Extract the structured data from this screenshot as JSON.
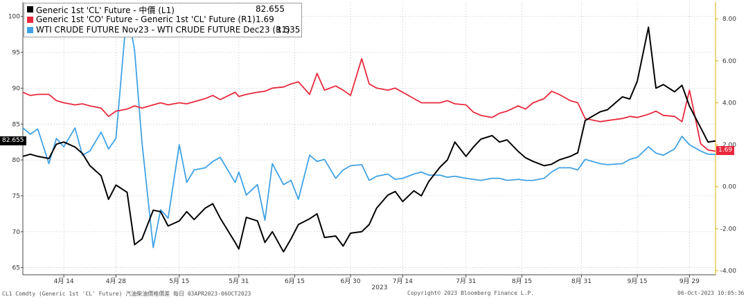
{
  "chart_data": {
    "type": "line",
    "x_start": "2023-04-03",
    "x_end": "2023-10-06",
    "x_tick_labels": [
      "4月 14",
      "4月 28",
      "5月 15",
      "5月 31",
      "6月 15",
      "6月 30",
      "7月 14",
      "7月 31",
      "8月 15",
      "8月 31",
      "9月 15",
      "9月 29"
    ],
    "x_tick_dates": [
      "2023-04-14",
      "2023-04-28",
      "2023-05-15",
      "2023-05-31",
      "2023-06-15",
      "2023-06-30",
      "2023-07-14",
      "2023-07-31",
      "2023-08-15",
      "2023-08-31",
      "2023-09-15",
      "2023-09-29"
    ],
    "x_year_label": "2023",
    "left_axis": {
      "ylim": [
        64,
        102
      ],
      "ticks": [
        65,
        70,
        75,
        80,
        85,
        90,
        95,
        100
      ]
    },
    "right_axis": {
      "ylim": [
        -4.2,
        8.8
      ],
      "ticks": [
        -4.0,
        -2.0,
        0.0,
        2.0,
        4.0,
        6.0,
        8.0
      ],
      "tick_labels": [
        "-4.00",
        "-2.00",
        "0.00",
        "2.00",
        "4.00",
        "6.00",
        "8.00"
      ]
    },
    "grid": true,
    "legend_position": "top-left",
    "series": [
      {
        "name": "Generic 1st 'CL' Future - 中價 (L1)",
        "last": "82.655",
        "axis": "left",
        "color": "#000000",
        "x": [
          "2023-04-03",
          "2023-04-05",
          "2023-04-07",
          "2023-04-10",
          "2023-04-12",
          "2023-04-14",
          "2023-04-17",
          "2023-04-19",
          "2023-04-21",
          "2023-04-24",
          "2023-04-26",
          "2023-04-28",
          "2023-05-01",
          "2023-05-03",
          "2023-05-05",
          "2023-05-08",
          "2023-05-10",
          "2023-05-12",
          "2023-05-15",
          "2023-05-17",
          "2023-05-19",
          "2023-05-22",
          "2023-05-24",
          "2023-05-26",
          "2023-05-30",
          "2023-05-31",
          "2023-06-02",
          "2023-06-05",
          "2023-06-07",
          "2023-06-09",
          "2023-06-12",
          "2023-06-14",
          "2023-06-16",
          "2023-06-19",
          "2023-06-21",
          "2023-06-23",
          "2023-06-26",
          "2023-06-28",
          "2023-06-30",
          "2023-07-03",
          "2023-07-05",
          "2023-07-07",
          "2023-07-10",
          "2023-07-12",
          "2023-07-14",
          "2023-07-17",
          "2023-07-19",
          "2023-07-21",
          "2023-07-24",
          "2023-07-26",
          "2023-07-28",
          "2023-07-31",
          "2023-08-02",
          "2023-08-04",
          "2023-08-07",
          "2023-08-09",
          "2023-08-11",
          "2023-08-14",
          "2023-08-16",
          "2023-08-18",
          "2023-08-21",
          "2023-08-23",
          "2023-08-25",
          "2023-08-28",
          "2023-08-30",
          "2023-09-01",
          "2023-09-05",
          "2023-09-07",
          "2023-09-11",
          "2023-09-13",
          "2023-09-15",
          "2023-09-18",
          "2023-09-20",
          "2023-09-22",
          "2023-09-25",
          "2023-09-27",
          "2023-09-29",
          "2023-10-02",
          "2023-10-04",
          "2023-10-06"
        ],
        "values": [
          80.5,
          80.8,
          80.5,
          80.2,
          82.2,
          82.5,
          81.8,
          80.9,
          79.2,
          77.8,
          74.5,
          76.5,
          75.5,
          68.2,
          69.0,
          73.0,
          72.8,
          70.8,
          71.5,
          72.8,
          71.7,
          73.3,
          73.9,
          71.9,
          68.5,
          67.6,
          72.0,
          71.5,
          68.5,
          70.0,
          67.2,
          69.0,
          71.0,
          71.8,
          72.5,
          69.2,
          69.4,
          68.0,
          69.8,
          70.0,
          71.0,
          73.3,
          75.1,
          75.6,
          74.2,
          75.7,
          75.0,
          77.0,
          79.0,
          80.0,
          82.5,
          80.5,
          81.8,
          82.9,
          83.4,
          82.5,
          82.8,
          81.2,
          80.3,
          79.8,
          79.2,
          79.4,
          80.0,
          80.5,
          81.0,
          85.5,
          86.7,
          87.0,
          88.8,
          88.5,
          91.0,
          98.5,
          90.0,
          90.5,
          89.5,
          90.4,
          87.5,
          84.5,
          82.5,
          82.655
        ]
      },
      {
        "name": "Generic 1st 'CO' Future - Generic 1st 'CL' Future (R1)",
        "last": "1.69",
        "axis": "right",
        "color": "#e8283c",
        "x": [
          "2023-04-03",
          "2023-04-05",
          "2023-04-07",
          "2023-04-10",
          "2023-04-12",
          "2023-04-14",
          "2023-04-17",
          "2023-04-19",
          "2023-04-21",
          "2023-04-24",
          "2023-04-26",
          "2023-04-28",
          "2023-05-01",
          "2023-05-03",
          "2023-05-05",
          "2023-05-08",
          "2023-05-10",
          "2023-05-12",
          "2023-05-15",
          "2023-05-17",
          "2023-05-19",
          "2023-05-22",
          "2023-05-24",
          "2023-05-26",
          "2023-05-30",
          "2023-05-31",
          "2023-06-02",
          "2023-06-05",
          "2023-06-07",
          "2023-06-09",
          "2023-06-12",
          "2023-06-14",
          "2023-06-16",
          "2023-06-19",
          "2023-06-21",
          "2023-06-23",
          "2023-06-26",
          "2023-06-28",
          "2023-06-30",
          "2023-07-03",
          "2023-07-05",
          "2023-07-07",
          "2023-07-10",
          "2023-07-12",
          "2023-07-14",
          "2023-07-17",
          "2023-07-19",
          "2023-07-21",
          "2023-07-24",
          "2023-07-26",
          "2023-07-28",
          "2023-07-31",
          "2023-08-02",
          "2023-08-04",
          "2023-08-07",
          "2023-08-09",
          "2023-08-11",
          "2023-08-14",
          "2023-08-16",
          "2023-08-18",
          "2023-08-21",
          "2023-08-23",
          "2023-08-25",
          "2023-08-28",
          "2023-08-30",
          "2023-09-01",
          "2023-09-05",
          "2023-09-07",
          "2023-09-11",
          "2023-09-13",
          "2023-09-15",
          "2023-09-18",
          "2023-09-20",
          "2023-09-22",
          "2023-09-25",
          "2023-09-27",
          "2023-09-29",
          "2023-10-02",
          "2023-10-04",
          "2023-10-06"
        ],
        "values": [
          4.5,
          4.35,
          4.4,
          4.4,
          4.1,
          4.0,
          3.9,
          3.95,
          3.85,
          3.75,
          3.35,
          3.6,
          3.7,
          3.85,
          3.75,
          3.9,
          4.0,
          3.9,
          4.0,
          3.95,
          4.05,
          4.2,
          4.35,
          4.15,
          4.5,
          4.3,
          4.4,
          4.5,
          4.55,
          4.7,
          4.75,
          4.9,
          5.0,
          4.4,
          5.4,
          4.6,
          4.8,
          4.6,
          4.35,
          6.1,
          4.9,
          4.7,
          4.6,
          4.7,
          4.5,
          4.2,
          4.0,
          4.0,
          4.0,
          4.1,
          3.95,
          3.9,
          3.55,
          3.4,
          3.3,
          3.5,
          3.6,
          3.85,
          3.7,
          4.0,
          4.2,
          4.55,
          4.4,
          4.1,
          4.0,
          3.25,
          3.1,
          3.15,
          3.25,
          3.35,
          3.3,
          3.45,
          3.6,
          3.4,
          3.35,
          3.1,
          4.6,
          2.05,
          1.75,
          1.69
        ]
      },
      {
        "name": "WTI CRUDE FUTURE Nov23 - WTI CRUDE FUTURE Dec23 (R1)",
        "last": "1.535",
        "axis": "right",
        "color": "#3fa2e6",
        "x": [
          "2023-04-03",
          "2023-04-05",
          "2023-04-07",
          "2023-04-10",
          "2023-04-12",
          "2023-04-14",
          "2023-04-17",
          "2023-04-19",
          "2023-04-21",
          "2023-04-24",
          "2023-04-26",
          "2023-04-28",
          "2023-05-01",
          "2023-05-03",
          "2023-05-05",
          "2023-05-08",
          "2023-05-10",
          "2023-05-12",
          "2023-05-15",
          "2023-05-17",
          "2023-05-19",
          "2023-05-22",
          "2023-05-24",
          "2023-05-26",
          "2023-05-30",
          "2023-05-31",
          "2023-06-02",
          "2023-06-05",
          "2023-06-07",
          "2023-06-09",
          "2023-06-12",
          "2023-06-14",
          "2023-06-16",
          "2023-06-19",
          "2023-06-21",
          "2023-06-23",
          "2023-06-26",
          "2023-06-28",
          "2023-06-30",
          "2023-07-03",
          "2023-07-05",
          "2023-07-07",
          "2023-07-10",
          "2023-07-12",
          "2023-07-14",
          "2023-07-17",
          "2023-07-19",
          "2023-07-21",
          "2023-07-24",
          "2023-07-26",
          "2023-07-28",
          "2023-07-31",
          "2023-08-02",
          "2023-08-04",
          "2023-08-07",
          "2023-08-09",
          "2023-08-11",
          "2023-08-14",
          "2023-08-16",
          "2023-08-18",
          "2023-08-21",
          "2023-08-23",
          "2023-08-25",
          "2023-08-28",
          "2023-08-30",
          "2023-09-01",
          "2023-09-05",
          "2023-09-07",
          "2023-09-11",
          "2023-09-13",
          "2023-09-15",
          "2023-09-18",
          "2023-09-20",
          "2023-09-22",
          "2023-09-25",
          "2023-09-27",
          "2023-09-29",
          "2023-10-02",
          "2023-10-04",
          "2023-10-06"
        ],
        "values": [
          2.8,
          2.5,
          2.75,
          1.1,
          2.3,
          1.9,
          2.8,
          1.5,
          1.7,
          2.6,
          1.8,
          2.3,
          8.5,
          6.5,
          2.1,
          -2.9,
          -1.1,
          -1.5,
          2.0,
          0.2,
          0.8,
          0.9,
          1.2,
          1.4,
          0.2,
          0.7,
          -0.4,
          0.1,
          -1.6,
          1.1,
          0.1,
          0.3,
          -0.6,
          1.5,
          1.2,
          1.3,
          0.4,
          0.8,
          1.0,
          1.05,
          0.3,
          0.5,
          0.6,
          0.35,
          0.4,
          0.6,
          0.7,
          0.55,
          0.55,
          0.45,
          0.5,
          0.4,
          0.35,
          0.3,
          0.4,
          0.4,
          0.3,
          0.35,
          0.3,
          0.3,
          0.4,
          0.7,
          0.9,
          0.9,
          0.8,
          1.3,
          1.1,
          1.05,
          1.1,
          1.3,
          1.4,
          1.9,
          1.6,
          1.5,
          1.8,
          2.4,
          2.0,
          1.7,
          1.55,
          1.535
        ]
      }
    ],
    "left_last_label": "82.655",
    "right_last_label": "1.69"
  },
  "footer": {
    "left": "CL1 Comdty (Generic 1st 'CL' Future) 汽油柴油價格價差  每日 03APR2023-06OCT2023",
    "center": "Copyright© 2023 Bloomberg Finance L.P.",
    "right": "06-Oct-2023 10:05:36"
  }
}
